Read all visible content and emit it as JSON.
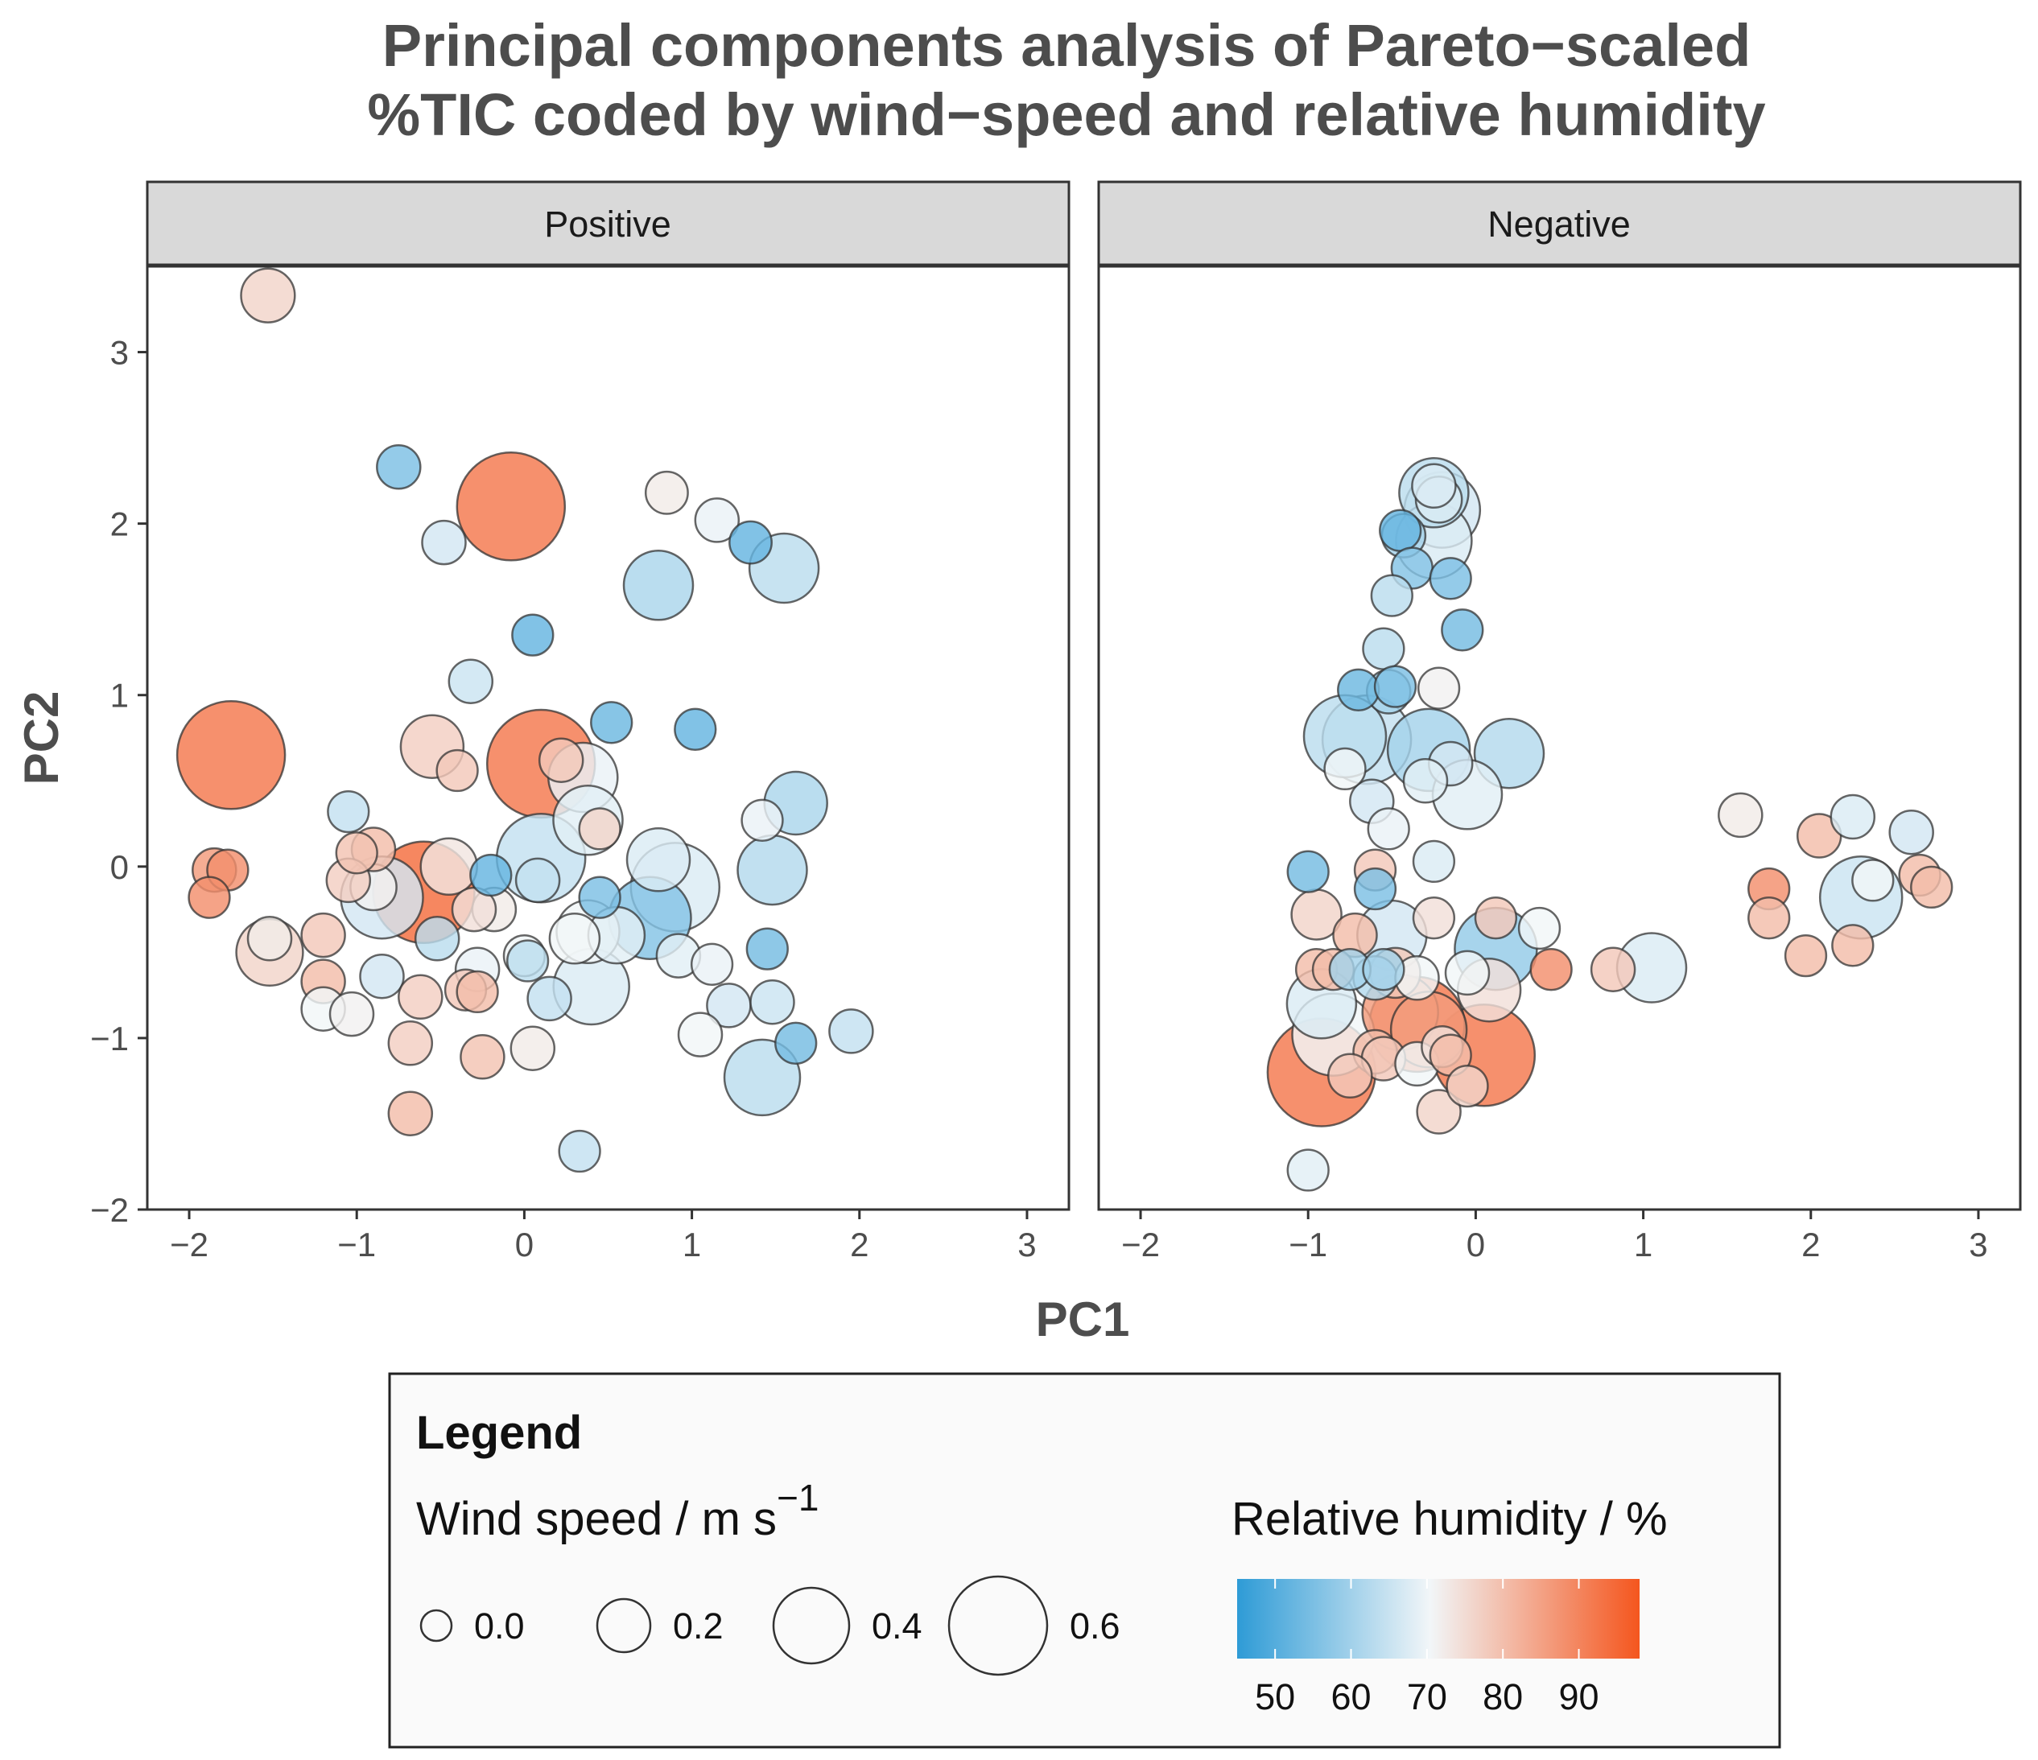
{
  "chart_data": {
    "type": "scatter",
    "title_lines": [
      "Principal components analysis of Pareto−scaled",
      "%TIC coded by wind−speed and relative humidity"
    ],
    "xlabel": "PC1",
    "ylabel": "PC2",
    "xlim": [
      -2.25,
      3.25
    ],
    "ylim": [
      -2.0,
      3.5
    ],
    "x_ticks": [
      -2,
      -1,
      0,
      1,
      2,
      3
    ],
    "x_tick_labels": [
      "−2",
      "−1",
      "0",
      "1",
      "2",
      "3"
    ],
    "y_ticks": [
      -2,
      -1,
      0,
      1,
      2,
      3
    ],
    "y_tick_labels": [
      "−2",
      "−1",
      "0",
      "1",
      "2",
      "3"
    ],
    "grid": false,
    "size_variable": "wind speed (m s⁻¹)",
    "color_variable": "relative humidity (%)",
    "color_scale": {
      "low": "#2e9bd6",
      "mid": "#f2f6f8",
      "high": "#f4561e",
      "low_value": 45,
      "mid_value": 70,
      "high_value": 98
    },
    "panels": [
      {
        "name": "Positive",
        "points": [
          {
            "x": -1.53,
            "y": 3.33,
            "ws": 0.18,
            "rh": 76
          },
          {
            "x": -0.75,
            "y": 2.33,
            "ws": 0.1,
            "rh": 55
          },
          {
            "x": -0.08,
            "y": 2.1,
            "ws": 0.6,
            "rh": 92
          },
          {
            "x": 0.85,
            "y": 2.18,
            "ws": 0.09,
            "rh": 72
          },
          {
            "x": -0.48,
            "y": 1.89,
            "ws": 0.1,
            "rh": 66
          },
          {
            "x": 1.15,
            "y": 2.02,
            "ws": 0.1,
            "rh": 69
          },
          {
            "x": 1.35,
            "y": 1.89,
            "ws": 0.09,
            "rh": 52
          },
          {
            "x": 1.55,
            "y": 1.74,
            "ws": 0.3,
            "rh": 63
          },
          {
            "x": 0.8,
            "y": 1.64,
            "ws": 0.3,
            "rh": 61
          },
          {
            "x": 0.05,
            "y": 1.35,
            "ws": 0.08,
            "rh": 52
          },
          {
            "x": -0.32,
            "y": 1.08,
            "ws": 0.1,
            "rh": 65
          },
          {
            "x": 0.52,
            "y": 0.84,
            "ws": 0.08,
            "rh": 53
          },
          {
            "x": 1.02,
            "y": 0.8,
            "ws": 0.08,
            "rh": 52
          },
          {
            "x": -1.75,
            "y": 0.65,
            "ws": 0.6,
            "rh": 92
          },
          {
            "x": -0.55,
            "y": 0.7,
            "ws": 0.25,
            "rh": 77
          },
          {
            "x": 0.1,
            "y": 0.6,
            "ws": 0.6,
            "rh": 92
          },
          {
            "x": -0.4,
            "y": 0.56,
            "ws": 0.08,
            "rh": 78
          },
          {
            "x": 0.22,
            "y": 0.62,
            "ws": 0.1,
            "rh": 78
          },
          {
            "x": 0.35,
            "y": 0.52,
            "ws": 0.3,
            "rh": 69
          },
          {
            "x": 1.62,
            "y": 0.37,
            "ws": 0.25,
            "rh": 61
          },
          {
            "x": 0.38,
            "y": 0.27,
            "ws": 0.3,
            "rh": 68
          },
          {
            "x": -1.05,
            "y": 0.32,
            "ws": 0.08,
            "rh": 64
          },
          {
            "x": 1.42,
            "y": 0.27,
            "ws": 0.08,
            "rh": 69
          },
          {
            "x": 0.45,
            "y": 0.22,
            "ws": 0.08,
            "rh": 76
          },
          {
            "x": -1.0,
            "y": 0.08,
            "ws": 0.08,
            "rh": 79
          },
          {
            "x": -0.9,
            "y": 0.1,
            "ws": 0.1,
            "rh": 80
          },
          {
            "x": -1.85,
            "y": -0.02,
            "ws": 0.1,
            "rh": 86
          },
          {
            "x": -1.77,
            "y": -0.02,
            "ws": 0.08,
            "rh": 88
          },
          {
            "x": -1.88,
            "y": -0.18,
            "ws": 0.08,
            "rh": 88
          },
          {
            "x": -0.45,
            "y": 0.0,
            "ws": 0.2,
            "rh": 73
          },
          {
            "x": 0.1,
            "y": 0.05,
            "ws": 0.45,
            "rh": 64
          },
          {
            "x": 0.8,
            "y": 0.04,
            "ws": 0.25,
            "rh": 67
          },
          {
            "x": 0.9,
            "y": -0.12,
            "ws": 0.45,
            "rh": 67
          },
          {
            "x": 1.48,
            "y": -0.02,
            "ws": 0.3,
            "rh": 62
          },
          {
            "x": -1.05,
            "y": -0.08,
            "ws": 0.1,
            "rh": 77
          },
          {
            "x": -0.9,
            "y": -0.12,
            "ws": 0.12,
            "rh": 71
          },
          {
            "x": -0.85,
            "y": -0.18,
            "ws": 0.4,
            "rh": 66
          },
          {
            "x": -0.6,
            "y": -0.15,
            "ws": 0.55,
            "rh": 94
          },
          {
            "x": -0.2,
            "y": -0.05,
            "ws": 0.08,
            "rh": 52
          },
          {
            "x": -0.18,
            "y": -0.25,
            "ws": 0.1,
            "rh": 72
          },
          {
            "x": -0.3,
            "y": -0.25,
            "ws": 0.1,
            "rh": 74
          },
          {
            "x": 0.08,
            "y": -0.08,
            "ws": 0.1,
            "rh": 64
          },
          {
            "x": 0.45,
            "y": -0.18,
            "ws": 0.08,
            "rh": 55
          },
          {
            "x": 0.75,
            "y": -0.3,
            "ws": 0.4,
            "rh": 56
          },
          {
            "x": 0.55,
            "y": -0.4,
            "ws": 0.2,
            "rh": 68
          },
          {
            "x": 0.38,
            "y": -0.38,
            "ws": 0.25,
            "rh": 70
          },
          {
            "x": 0.3,
            "y": -0.42,
            "ws": 0.15,
            "rh": 70
          },
          {
            "x": -1.52,
            "y": -0.42,
            "ws": 0.1,
            "rh": 72
          },
          {
            "x": -1.52,
            "y": -0.5,
            "ws": 0.28,
            "rh": 76
          },
          {
            "x": -1.2,
            "y": -0.4,
            "ws": 0.1,
            "rh": 78
          },
          {
            "x": -0.52,
            "y": -0.42,
            "ws": 0.1,
            "rh": 63
          },
          {
            "x": 0.4,
            "y": -0.7,
            "ws": 0.35,
            "rh": 67
          },
          {
            "x": 1.45,
            "y": -0.48,
            "ws": 0.08,
            "rh": 54
          },
          {
            "x": 0.92,
            "y": -0.52,
            "ws": 0.1,
            "rh": 68
          },
          {
            "x": 1.12,
            "y": -0.57,
            "ws": 0.08,
            "rh": 69
          },
          {
            "x": 0.0,
            "y": -0.52,
            "ws": 0.08,
            "rh": 70
          },
          {
            "x": 0.02,
            "y": -0.55,
            "ws": 0.08,
            "rh": 63
          },
          {
            "x": -0.28,
            "y": -0.6,
            "ws": 0.1,
            "rh": 69
          },
          {
            "x": -0.85,
            "y": -0.64,
            "ws": 0.1,
            "rh": 66
          },
          {
            "x": -1.2,
            "y": -0.67,
            "ws": 0.1,
            "rh": 80
          },
          {
            "x": -0.35,
            "y": -0.72,
            "ws": 0.08,
            "rh": 78
          },
          {
            "x": -0.28,
            "y": -0.73,
            "ws": 0.08,
            "rh": 80
          },
          {
            "x": -0.62,
            "y": -0.76,
            "ws": 0.1,
            "rh": 77
          },
          {
            "x": -1.2,
            "y": -0.83,
            "ws": 0.1,
            "rh": 70
          },
          {
            "x": -1.03,
            "y": -0.86,
            "ws": 0.1,
            "rh": 71
          },
          {
            "x": 0.15,
            "y": -0.77,
            "ws": 0.1,
            "rh": 64
          },
          {
            "x": 1.22,
            "y": -0.81,
            "ws": 0.1,
            "rh": 66
          },
          {
            "x": 1.48,
            "y": -0.79,
            "ws": 0.1,
            "rh": 65
          },
          {
            "x": 1.05,
            "y": -0.98,
            "ws": 0.1,
            "rh": 70
          },
          {
            "x": 1.95,
            "y": -0.96,
            "ws": 0.1,
            "rh": 64
          },
          {
            "x": 1.62,
            "y": -1.03,
            "ws": 0.08,
            "rh": 54
          },
          {
            "x": -0.68,
            "y": -1.03,
            "ws": 0.1,
            "rh": 77
          },
          {
            "x": 0.05,
            "y": -1.06,
            "ws": 0.1,
            "rh": 72
          },
          {
            "x": -0.25,
            "y": -1.11,
            "ws": 0.1,
            "rh": 79
          },
          {
            "x": 1.42,
            "y": -1.23,
            "ws": 0.35,
            "rh": 63
          },
          {
            "x": -0.68,
            "y": -1.44,
            "ws": 0.1,
            "rh": 80
          },
          {
            "x": 0.33,
            "y": -1.66,
            "ws": 0.08,
            "rh": 64
          }
        ]
      },
      {
        "name": "Negative",
        "points": [
          {
            "x": -0.25,
            "y": 2.18,
            "ws": 0.3,
            "rh": 63
          },
          {
            "x": -0.25,
            "y": 2.22,
            "ws": 0.1,
            "rh": 67
          },
          {
            "x": -0.22,
            "y": 2.14,
            "ws": 0.12,
            "rh": 67
          },
          {
            "x": -0.2,
            "y": 2.08,
            "ws": 0.35,
            "rh": 66
          },
          {
            "x": -0.45,
            "y": 1.96,
            "ws": 0.08,
            "rh": 52
          },
          {
            "x": -0.43,
            "y": 1.93,
            "ws": 0.1,
            "rh": 60
          },
          {
            "x": -0.25,
            "y": 1.9,
            "ws": 0.35,
            "rh": 67
          },
          {
            "x": -0.38,
            "y": 1.74,
            "ws": 0.08,
            "rh": 56
          },
          {
            "x": -0.15,
            "y": 1.68,
            "ws": 0.08,
            "rh": 55
          },
          {
            "x": -0.5,
            "y": 1.58,
            "ws": 0.08,
            "rh": 63
          },
          {
            "x": -0.08,
            "y": 1.38,
            "ws": 0.08,
            "rh": 54
          },
          {
            "x": -0.55,
            "y": 1.27,
            "ws": 0.08,
            "rh": 63
          },
          {
            "x": -0.7,
            "y": 1.03,
            "ws": 0.08,
            "rh": 53
          },
          {
            "x": -0.48,
            "y": 1.05,
            "ws": 0.08,
            "rh": 55
          },
          {
            "x": -0.52,
            "y": 1.02,
            "ws": 0.1,
            "rh": 60
          },
          {
            "x": -0.22,
            "y": 1.04,
            "ws": 0.08,
            "rh": 71
          },
          {
            "x": -0.78,
            "y": 0.76,
            "ws": 0.4,
            "rh": 63
          },
          {
            "x": -0.65,
            "y": 0.74,
            "ws": 0.45,
            "rh": 64
          },
          {
            "x": -0.28,
            "y": 0.68,
            "ws": 0.4,
            "rh": 60
          },
          {
            "x": -0.78,
            "y": 0.57,
            "ws": 0.08,
            "rh": 70
          },
          {
            "x": -0.15,
            "y": 0.6,
            "ws": 0.1,
            "rh": 66
          },
          {
            "x": -0.3,
            "y": 0.5,
            "ws": 0.1,
            "rh": 68
          },
          {
            "x": 0.2,
            "y": 0.66,
            "ws": 0.3,
            "rh": 62
          },
          {
            "x": -0.05,
            "y": 0.42,
            "ws": 0.3,
            "rh": 68
          },
          {
            "x": -0.62,
            "y": 0.38,
            "ws": 0.1,
            "rh": 66
          },
          {
            "x": -0.52,
            "y": 0.22,
            "ws": 0.08,
            "rh": 69
          },
          {
            "x": -0.25,
            "y": 0.03,
            "ws": 0.08,
            "rh": 67
          },
          {
            "x": 1.58,
            "y": 0.3,
            "ws": 0.1,
            "rh": 72
          },
          {
            "x": 2.05,
            "y": 0.18,
            "ws": 0.1,
            "rh": 80
          },
          {
            "x": 2.25,
            "y": 0.29,
            "ws": 0.1,
            "rh": 67
          },
          {
            "x": 2.6,
            "y": 0.2,
            "ws": 0.1,
            "rh": 66
          },
          {
            "x": 2.3,
            "y": -0.18,
            "ws": 0.4,
            "rh": 65
          },
          {
            "x": 2.37,
            "y": -0.08,
            "ws": 0.08,
            "rh": 70
          },
          {
            "x": 2.65,
            "y": -0.05,
            "ws": 0.08,
            "rh": 80
          },
          {
            "x": 2.72,
            "y": -0.12,
            "ws": 0.08,
            "rh": 80
          },
          {
            "x": 1.75,
            "y": -0.13,
            "ws": 0.08,
            "rh": 88
          },
          {
            "x": 1.75,
            "y": -0.3,
            "ws": 0.08,
            "rh": 80
          },
          {
            "x": 1.97,
            "y": -0.52,
            "ws": 0.08,
            "rh": 80
          },
          {
            "x": 2.25,
            "y": -0.46,
            "ws": 0.08,
            "rh": 80
          },
          {
            "x": -1.0,
            "y": -0.03,
            "ws": 0.08,
            "rh": 54
          },
          {
            "x": -0.6,
            "y": -0.02,
            "ws": 0.08,
            "rh": 78
          },
          {
            "x": -0.6,
            "y": -0.13,
            "ws": 0.08,
            "rh": 55
          },
          {
            "x": -0.95,
            "y": -0.28,
            "ws": 0.15,
            "rh": 76
          },
          {
            "x": -0.72,
            "y": -0.4,
            "ws": 0.1,
            "rh": 80
          },
          {
            "x": -0.5,
            "y": -0.4,
            "ws": 0.3,
            "rh": 66
          },
          {
            "x": -0.25,
            "y": -0.3,
            "ws": 0.08,
            "rh": 74
          },
          {
            "x": 0.12,
            "y": -0.3,
            "ws": 0.08,
            "rh": 78
          },
          {
            "x": 0.38,
            "y": -0.36,
            "ws": 0.08,
            "rh": 70
          },
          {
            "x": 0.12,
            "y": -0.48,
            "ws": 0.4,
            "rh": 58
          },
          {
            "x": 0.45,
            "y": -0.6,
            "ws": 0.08,
            "rh": 88
          },
          {
            "x": 0.82,
            "y": -0.6,
            "ws": 0.1,
            "rh": 78
          },
          {
            "x": 1.05,
            "y": -0.59,
            "ws": 0.3,
            "rh": 67
          },
          {
            "x": -0.95,
            "y": -0.6,
            "ws": 0.08,
            "rh": 80
          },
          {
            "x": -0.85,
            "y": -0.6,
            "ws": 0.08,
            "rh": 80
          },
          {
            "x": -0.75,
            "y": -0.6,
            "ws": 0.08,
            "rh": 60
          },
          {
            "x": -0.6,
            "y": -0.65,
            "ws": 0.1,
            "rh": 62
          },
          {
            "x": -0.55,
            "y": -0.6,
            "ws": 0.08,
            "rh": 60
          },
          {
            "x": -0.48,
            "y": -0.62,
            "ws": 0.15,
            "rh": 78
          },
          {
            "x": -0.35,
            "y": -0.65,
            "ws": 0.1,
            "rh": 70
          },
          {
            "x": -0.05,
            "y": -0.62,
            "ws": 0.1,
            "rh": 70
          },
          {
            "x": 0.08,
            "y": -0.72,
            "ws": 0.25,
            "rh": 74
          },
          {
            "x": -0.92,
            "y": -0.8,
            "ws": 0.3,
            "rh": 67
          },
          {
            "x": -0.85,
            "y": -0.98,
            "ws": 0.4,
            "rh": 70
          },
          {
            "x": -0.45,
            "y": -0.85,
            "ws": 0.35,
            "rh": 86
          },
          {
            "x": -0.35,
            "y": -0.92,
            "ws": 0.5,
            "rh": 92
          },
          {
            "x": -0.28,
            "y": -0.95,
            "ws": 0.35,
            "rh": 86
          },
          {
            "x": 0.05,
            "y": -1.1,
            "ws": 0.55,
            "rh": 92
          },
          {
            "x": -0.92,
            "y": -1.2,
            "ws": 0.6,
            "rh": 92
          },
          {
            "x": -0.2,
            "y": -1.05,
            "ws": 0.08,
            "rh": 74
          },
          {
            "x": -0.15,
            "y": -1.1,
            "ws": 0.08,
            "rh": 80
          },
          {
            "x": -0.6,
            "y": -1.08,
            "ws": 0.1,
            "rh": 80
          },
          {
            "x": -0.55,
            "y": -1.12,
            "ws": 0.1,
            "rh": 78
          },
          {
            "x": -0.35,
            "y": -1.15,
            "ws": 0.1,
            "rh": 70
          },
          {
            "x": -0.75,
            "y": -1.22,
            "ws": 0.1,
            "rh": 78
          },
          {
            "x": -0.05,
            "y": -1.28,
            "ws": 0.08,
            "rh": 76
          },
          {
            "x": -0.22,
            "y": -1.43,
            "ws": 0.1,
            "rh": 76
          },
          {
            "x": -1.0,
            "y": -1.77,
            "ws": 0.08,
            "rh": 68
          }
        ]
      }
    ]
  },
  "legend": {
    "title": "Legend",
    "size_title_text": "Wind speed / m s",
    "size_title_exp": "−1",
    "size_breaks": [
      0.0,
      0.2,
      0.4,
      0.6
    ],
    "size_labels": [
      "0.0",
      "0.2",
      "0.4",
      "0.6"
    ],
    "color_title": "Relative humidity / %",
    "color_breaks": [
      50,
      60,
      70,
      80,
      90
    ],
    "color_labels": [
      "50",
      "60",
      "70",
      "80",
      "90"
    ]
  }
}
